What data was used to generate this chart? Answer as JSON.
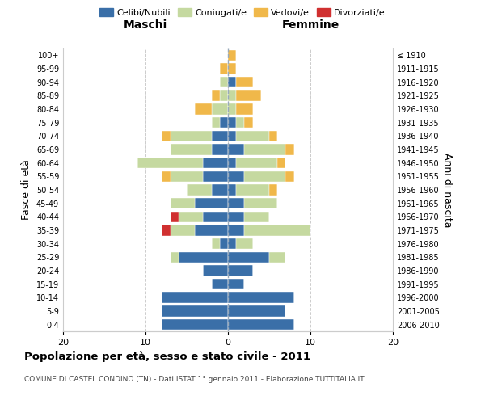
{
  "age_groups": [
    "0-4",
    "5-9",
    "10-14",
    "15-19",
    "20-24",
    "25-29",
    "30-34",
    "35-39",
    "40-44",
    "45-49",
    "50-54",
    "55-59",
    "60-64",
    "65-69",
    "70-74",
    "75-79",
    "80-84",
    "85-89",
    "90-94",
    "95-99",
    "100+"
  ],
  "birth_years": [
    "2006-2010",
    "2001-2005",
    "1996-2000",
    "1991-1995",
    "1986-1990",
    "1981-1985",
    "1976-1980",
    "1971-1975",
    "1966-1970",
    "1961-1965",
    "1956-1960",
    "1951-1955",
    "1946-1950",
    "1941-1945",
    "1936-1940",
    "1931-1935",
    "1926-1930",
    "1921-1925",
    "1916-1920",
    "1911-1915",
    "≤ 1910"
  ],
  "male": {
    "celibi": [
      8,
      8,
      8,
      2,
      3,
      6,
      1,
      4,
      3,
      4,
      2,
      3,
      3,
      2,
      2,
      1,
      0,
      0,
      0,
      0,
      0
    ],
    "coniugati": [
      0,
      0,
      0,
      0,
      0,
      1,
      1,
      3,
      3,
      3,
      3,
      4,
      8,
      5,
      5,
      1,
      2,
      1,
      1,
      0,
      0
    ],
    "vedovi": [
      0,
      0,
      0,
      0,
      0,
      0,
      0,
      0,
      0,
      0,
      0,
      1,
      0,
      0,
      1,
      0,
      2,
      1,
      0,
      1,
      0
    ],
    "divorziati": [
      0,
      0,
      0,
      0,
      0,
      0,
      0,
      1,
      1,
      0,
      0,
      0,
      0,
      0,
      0,
      0,
      0,
      0,
      0,
      0,
      0
    ]
  },
  "female": {
    "nubili": [
      8,
      7,
      8,
      2,
      3,
      5,
      1,
      2,
      2,
      2,
      1,
      2,
      1,
      2,
      1,
      1,
      0,
      0,
      1,
      0,
      0
    ],
    "coniugate": [
      0,
      0,
      0,
      0,
      0,
      2,
      2,
      8,
      3,
      4,
      4,
      5,
      5,
      5,
      4,
      1,
      1,
      1,
      0,
      0,
      0
    ],
    "vedove": [
      0,
      0,
      0,
      0,
      0,
      0,
      0,
      0,
      0,
      0,
      1,
      1,
      1,
      1,
      1,
      1,
      2,
      3,
      2,
      1,
      1
    ],
    "divorziate": [
      0,
      0,
      0,
      0,
      0,
      0,
      0,
      0,
      0,
      0,
      0,
      0,
      0,
      0,
      0,
      0,
      0,
      0,
      0,
      0,
      0
    ]
  },
  "colors": {
    "celibi": "#3a6fa8",
    "coniugati": "#c5d9a0",
    "vedovi": "#f0b84a",
    "divorziati": "#d03030"
  },
  "xlim": [
    -20,
    20
  ],
  "xticks": [
    -20,
    -10,
    0,
    10,
    20
  ],
  "xticklabels": [
    "20",
    "10",
    "0",
    "10",
    "20"
  ],
  "title": "Popolazione per età, sesso e stato civile - 2011",
  "subtitle": "COMUNE DI CASTEL CONDINO (TN) - Dati ISTAT 1° gennaio 2011 - Elaborazione TUTTITALIA.IT",
  "ylabel_left": "Fasce di età",
  "ylabel_right": "Anni di nascita",
  "legend_labels": [
    "Celibi/Nubili",
    "Coniugati/e",
    "Vedovi/e",
    "Divorziati/e"
  ],
  "male_label": "Maschi",
  "female_label": "Femmine",
  "background_color": "#ffffff",
  "grid_color": "#cccccc"
}
